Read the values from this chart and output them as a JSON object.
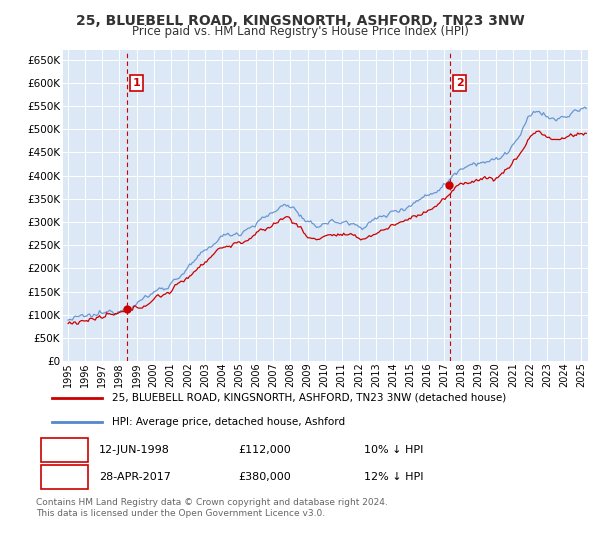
{
  "title": "25, BLUEBELL ROAD, KINGSNORTH, ASHFORD, TN23 3NW",
  "subtitle": "Price paid vs. HM Land Registry's House Price Index (HPI)",
  "ylim": [
    0,
    670000
  ],
  "yticks": [
    0,
    50000,
    100000,
    150000,
    200000,
    250000,
    300000,
    350000,
    400000,
    450000,
    500000,
    550000,
    600000,
    650000
  ],
  "xlim_start": 1994.7,
  "xlim_end": 2025.4,
  "background_color": "#ffffff",
  "plot_bg_color": "#dce8f5",
  "grid_color": "#ffffff",
  "line_color_red": "#cc0000",
  "line_color_blue": "#5588cc",
  "vline_color": "#cc0000",
  "annotation_box_color": "#cc0000",
  "sale1_x": 1998.44,
  "sale1_y": 112000,
  "sale1_label": "1",
  "sale1_date": "12-JUN-1998",
  "sale1_price": "£112,000",
  "sale1_hpi": "10% ↓ HPI",
  "sale2_x": 2017.32,
  "sale2_y": 380000,
  "sale2_label": "2",
  "sale2_date": "28-APR-2017",
  "sale2_price": "£380,000",
  "sale2_hpi": "12% ↓ HPI",
  "legend_label_red": "25, BLUEBELL ROAD, KINGSNORTH, ASHFORD, TN23 3NW (detached house)",
  "legend_label_blue": "HPI: Average price, detached house, Ashford",
  "footer": "Contains HM Land Registry data © Crown copyright and database right 2024.\nThis data is licensed under the Open Government Licence v3.0.",
  "xtick_years": [
    1995,
    1996,
    1997,
    1998,
    1999,
    2000,
    2001,
    2002,
    2003,
    2004,
    2005,
    2006,
    2007,
    2008,
    2009,
    2010,
    2011,
    2012,
    2013,
    2014,
    2015,
    2016,
    2017,
    2018,
    2019,
    2020,
    2021,
    2022,
    2023,
    2024,
    2025
  ]
}
